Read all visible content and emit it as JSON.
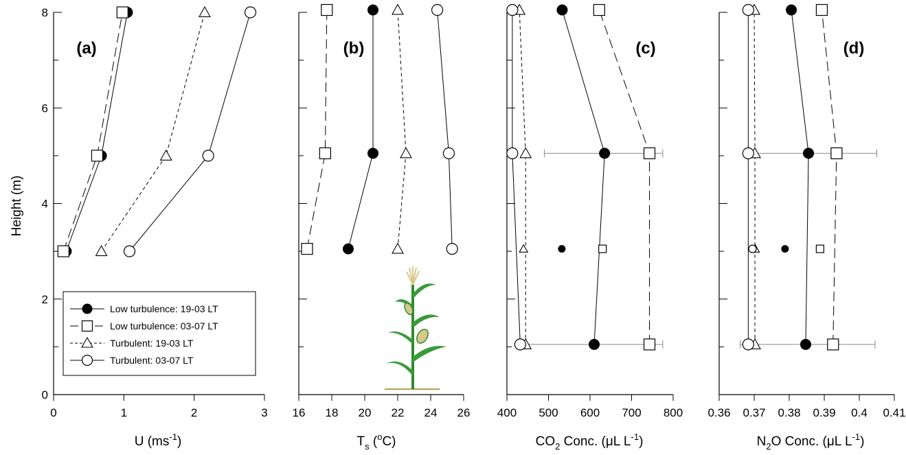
{
  "chart_data": [
    {
      "type": "scatter",
      "panel_label": "(a)",
      "xlabel": "U (ms-1)",
      "xlabel_main": "U (ms",
      "xlabel_sup": "-1",
      "xlabel_tail": ")",
      "ylabel": "Height (m)",
      "xlim": [
        0,
        3
      ],
      "ylim": [
        0,
        8
      ],
      "xticks": [
        0,
        1,
        2,
        3
      ],
      "yticks": [
        0,
        2,
        4,
        6,
        8
      ],
      "legend_position": "bottom-left",
      "series": [
        {
          "name": "Low turbulence: 19-03 LT",
          "x": [
            0.18,
            0.68,
            1.05
          ],
          "y": [
            3,
            5,
            8
          ]
        },
        {
          "name": "Low turbulence: 03-07 LT",
          "x": [
            0.14,
            0.62,
            0.98
          ],
          "y": [
            3,
            5,
            8
          ]
        },
        {
          "name": "Turbulent: 19-03 LT",
          "x": [
            0.68,
            1.6,
            2.15
          ],
          "y": [
            3,
            5,
            8
          ]
        },
        {
          "name": "Turbulent: 03-07 LT",
          "x": [
            1.08,
            2.2,
            2.8
          ],
          "y": [
            3,
            5,
            8
          ]
        }
      ]
    },
    {
      "type": "scatter",
      "panel_label": "(b)",
      "xlabel": "Ts (oC)",
      "xlim": [
        16,
        26
      ],
      "ylim": [
        0,
        8
      ],
      "xticks": [
        16,
        18,
        20,
        22,
        24,
        26
      ],
      "series": [
        {
          "name": "Low turbulence: 19-03 LT",
          "x": [
            19.0,
            20.5,
            20.5
          ],
          "y": [
            3.05,
            5.05,
            8.05
          ]
        },
        {
          "name": "Low turbulence: 03-07 LT",
          "x": [
            16.5,
            17.6,
            17.7
          ],
          "y": [
            3.05,
            5.05,
            8.05
          ]
        },
        {
          "name": "Turbulent: 19-03 LT",
          "x": [
            22.0,
            22.5,
            22.0
          ],
          "y": [
            3.05,
            5.05,
            8.05
          ]
        },
        {
          "name": "Turbulent: 03-07 LT",
          "x": [
            25.3,
            25.1,
            24.4
          ],
          "y": [
            3.05,
            5.05,
            8.05
          ]
        }
      ]
    },
    {
      "type": "scatter",
      "panel_label": "(c)",
      "xlabel": "CO2 Conc. (μL L-1)",
      "xlim": [
        400,
        800
      ],
      "ylim": [
        0,
        8
      ],
      "xticks": [
        400,
        500,
        600,
        700,
        800
      ],
      "series": [
        {
          "name": "Low turbulence: 19-03 LT",
          "x": [
            610,
            635,
            533
          ],
          "y": [
            1.05,
            5.05,
            8.05
          ]
        },
        {
          "name": "Low turbulence: 03-07 LT",
          "x": [
            743,
            743,
            622
          ],
          "y": [
            1.05,
            5.05,
            8.05
          ]
        },
        {
          "name": "Turbulent: 19-03 LT",
          "x": [
            445,
            445,
            430
          ],
          "y": [
            1.05,
            5.05,
            8.05
          ]
        },
        {
          "name": "Turbulent: 03-07 LT",
          "x": [
            432,
            413,
            413
          ],
          "y": [
            1.05,
            5.05,
            8.05
          ]
        }
      ],
      "unconnected_points": [
        {
          "series": "Low turbulence: 19-03 LT",
          "x": 532,
          "y": 3.05
        },
        {
          "series": "Low turbulence: 03-07 LT",
          "x": 630,
          "y": 3.05
        },
        {
          "series": "Turbulent: 19-03 LT",
          "x": 440,
          "y": 3.05
        }
      ],
      "error_bars": [
        {
          "y": 5.05,
          "xmin": 490,
          "xmax": 775
        },
        {
          "y": 1.05,
          "xmin": 430,
          "xmax": 775
        }
      ]
    },
    {
      "type": "scatter",
      "panel_label": "(d)",
      "xlabel": "N2O Conc. (μL L-1)",
      "xlim": [
        0.36,
        0.41
      ],
      "ylim": [
        0,
        8
      ],
      "xticks": [
        0.36,
        0.37,
        0.38,
        0.39,
        0.4,
        0.41
      ],
      "xtick_labels": [
        "0.36",
        "0.37",
        "0.38",
        "0.39",
        "0.4",
        "0.41"
      ],
      "series": [
        {
          "name": "Low turbulence: 19-03 LT",
          "x": [
            0.3847,
            0.3855,
            0.3806
          ],
          "y": [
            1.05,
            5.05,
            8.05
          ]
        },
        {
          "name": "Low turbulence: 03-07 LT",
          "x": [
            0.3925,
            0.3935,
            0.3893
          ],
          "y": [
            1.05,
            5.05,
            8.05
          ]
        },
        {
          "name": "Turbulent: 19-03 LT",
          "x": [
            0.3702,
            0.3702,
            0.37
          ],
          "y": [
            1.05,
            5.05,
            8.05
          ]
        },
        {
          "name": "Turbulent: 03-07 LT",
          "x": [
            0.3683,
            0.3683,
            0.3683
          ],
          "y": [
            1.05,
            5.05,
            8.05
          ]
        }
      ],
      "unconnected_points": [
        {
          "series": "Low turbulence: 19-03 LT",
          "x": 0.3788,
          "y": 3.05
        },
        {
          "series": "Low turbulence: 03-07 LT",
          "x": 0.3888,
          "y": 3.05
        },
        {
          "series": "Turbulent: 19-03 LT",
          "x": 0.3703,
          "y": 3.05
        },
        {
          "series": "Turbulent: 03-07 LT",
          "x": 0.3695,
          "y": 3.05
        }
      ],
      "error_bars": [
        {
          "y": 5.05,
          "xmin": 0.3683,
          "xmax": 0.405
        },
        {
          "y": 1.05,
          "xmin": 0.366,
          "xmax": 0.4045
        }
      ]
    }
  ],
  "labels": {
    "ylabel": "Height (m)",
    "a_x_main": "U (ms",
    "a_x_sup": "-1",
    "a_x_tail": ")",
    "b_x_main": "T",
    "b_x_sub": "s",
    "b_x_mid": " (",
    "b_x_sup": "o",
    "b_x_tail": "C)",
    "c_x_main": "CO",
    "c_x_sub": "2",
    "c_x_mid": " Conc. (μL L",
    "c_x_sup": "-1",
    "c_x_tail": ")",
    "d_x_main": "N",
    "d_x_sub": "2",
    "d_x_mid": "O Conc. (μL L",
    "d_x_sup": "-1",
    "d_x_tail": ")"
  },
  "legend": [
    {
      "label": "Low turbulence: 19-03 LT",
      "marker": "filled-circle",
      "line": "solid"
    },
    {
      "label": "Low turbulence: 03-07 LT",
      "marker": "open-square",
      "line": "dash"
    },
    {
      "label": "Turbulent: 19-03 LT",
      "marker": "open-triangle",
      "line": "short-dash"
    },
    {
      "label": "Turbulent: 03-07 LT",
      "marker": "open-circle",
      "line": "solid"
    }
  ],
  "illustration": {
    "icon": "maize-plant-icon",
    "stalk_color": "#2e8b2e",
    "tassel_color": "#d8c98a"
  }
}
